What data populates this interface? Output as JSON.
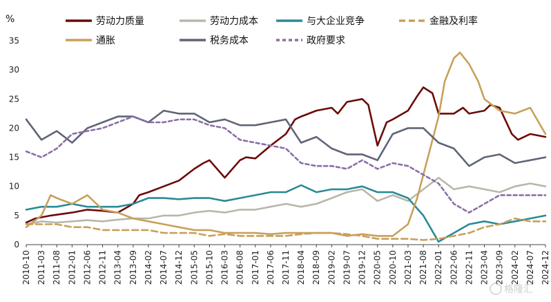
{
  "chart_data": {
    "type": "line",
    "unit": "%",
    "ylim": [
      0,
      35
    ],
    "yticks": [
      0,
      5,
      10,
      15,
      20,
      25,
      30,
      35
    ],
    "x_start": "2010-10",
    "x_end": "2024-12",
    "xticks": [
      "2010-10",
      "2011-03",
      "2011-08",
      "2012-01",
      "2012-06",
      "2012-11",
      "2013-04",
      "2013-09",
      "2014-02",
      "2014-07",
      "2014-12",
      "2015-05",
      "2015-10",
      "2016-03",
      "2016-08",
      "2017-01",
      "2017-06",
      "2017-11",
      "2018-04",
      "2018-09",
      "2019-02",
      "2019-07",
      "2019-12",
      "2020-05",
      "2020-10",
      "2021-03",
      "2021-08",
      "2022-01",
      "2022-06",
      "2022-11",
      "2023-04",
      "2023-09",
      "2024-02",
      "2024-07",
      "2024-12"
    ],
    "legend_position": "top",
    "grid": false,
    "series": [
      {
        "name": "劳动力质量",
        "color": "#6b0a0a",
        "dash": "solid",
        "points": [
          [
            "2010-10",
            3.8
          ],
          [
            "2011-01",
            4.5
          ],
          [
            "2011-06",
            5.0
          ],
          [
            "2012-01",
            5.5
          ],
          [
            "2012-06",
            6.0
          ],
          [
            "2012-11",
            5.8
          ],
          [
            "2013-04",
            5.5
          ],
          [
            "2013-09",
            7.0
          ],
          [
            "2013-11",
            8.5
          ],
          [
            "2014-02",
            9.0
          ],
          [
            "2014-07",
            10.0
          ],
          [
            "2014-12",
            11.0
          ],
          [
            "2015-05",
            13.0
          ],
          [
            "2015-08",
            14.0
          ],
          [
            "2015-10",
            14.5
          ],
          [
            "2016-03",
            11.5
          ],
          [
            "2016-08",
            14.5
          ],
          [
            "2016-10",
            15.0
          ],
          [
            "2017-01",
            14.8
          ],
          [
            "2017-06",
            17.0
          ],
          [
            "2017-11",
            19.0
          ],
          [
            "2018-02",
            21.5
          ],
          [
            "2018-04",
            22.0
          ],
          [
            "2018-09",
            23.0
          ],
          [
            "2019-02",
            23.5
          ],
          [
            "2019-04",
            22.5
          ],
          [
            "2019-07",
            24.5
          ],
          [
            "2019-12",
            25.0
          ],
          [
            "2020-02",
            24.0
          ],
          [
            "2020-05",
            17.0
          ],
          [
            "2020-08",
            21.0
          ],
          [
            "2020-10",
            21.5
          ],
          [
            "2021-03",
            23.0
          ],
          [
            "2021-06",
            25.5
          ],
          [
            "2021-08",
            27.0
          ],
          [
            "2021-11",
            26.0
          ],
          [
            "2022-01",
            22.5
          ],
          [
            "2022-06",
            22.5
          ],
          [
            "2022-09",
            23.5
          ],
          [
            "2022-11",
            22.5
          ],
          [
            "2023-04",
            23.0
          ],
          [
            "2023-06",
            24.0
          ],
          [
            "2023-09",
            23.5
          ],
          [
            "2024-01",
            19.0
          ],
          [
            "2024-03",
            18.0
          ],
          [
            "2024-07",
            19.0
          ],
          [
            "2024-12",
            18.5
          ]
        ]
      },
      {
        "name": "劳动力成本",
        "color": "#b9b6aa",
        "dash": "solid",
        "points": [
          [
            "2010-10",
            3.5
          ],
          [
            "2011-03",
            4.0
          ],
          [
            "2011-08",
            3.8
          ],
          [
            "2012-01",
            4.0
          ],
          [
            "2012-06",
            4.2
          ],
          [
            "2012-11",
            4.0
          ],
          [
            "2013-04",
            4.3
          ],
          [
            "2013-09",
            4.5
          ],
          [
            "2014-02",
            4.5
          ],
          [
            "2014-07",
            5.0
          ],
          [
            "2014-12",
            5.0
          ],
          [
            "2015-05",
            5.5
          ],
          [
            "2015-10",
            5.8
          ],
          [
            "2016-03",
            5.5
          ],
          [
            "2016-08",
            6.0
          ],
          [
            "2017-01",
            6.0
          ],
          [
            "2017-06",
            6.5
          ],
          [
            "2017-11",
            7.0
          ],
          [
            "2018-04",
            6.5
          ],
          [
            "2018-09",
            7.0
          ],
          [
            "2019-02",
            8.0
          ],
          [
            "2019-07",
            9.0
          ],
          [
            "2019-12",
            9.5
          ],
          [
            "2020-05",
            7.5
          ],
          [
            "2020-10",
            8.5
          ],
          [
            "2021-03",
            7.5
          ],
          [
            "2021-08",
            9.5
          ],
          [
            "2022-01",
            11.5
          ],
          [
            "2022-06",
            9.5
          ],
          [
            "2022-11",
            10.0
          ],
          [
            "2023-04",
            9.5
          ],
          [
            "2023-09",
            9.0
          ],
          [
            "2024-02",
            10.0
          ],
          [
            "2024-07",
            10.5
          ],
          [
            "2024-12",
            10.0
          ]
        ]
      },
      {
        "name": "与大企业竞争",
        "color": "#2a8a96",
        "dash": "solid",
        "points": [
          [
            "2010-10",
            6.0
          ],
          [
            "2011-03",
            6.5
          ],
          [
            "2011-08",
            6.5
          ],
          [
            "2012-01",
            7.0
          ],
          [
            "2012-06",
            6.5
          ],
          [
            "2012-11",
            6.5
          ],
          [
            "2013-04",
            6.5
          ],
          [
            "2013-09",
            7.0
          ],
          [
            "2014-02",
            8.0
          ],
          [
            "2014-07",
            8.0
          ],
          [
            "2014-12",
            7.8
          ],
          [
            "2015-05",
            8.0
          ],
          [
            "2015-10",
            8.0
          ],
          [
            "2016-03",
            7.5
          ],
          [
            "2016-08",
            8.0
          ],
          [
            "2017-01",
            8.5
          ],
          [
            "2017-06",
            9.0
          ],
          [
            "2017-11",
            9.0
          ],
          [
            "2018-04",
            10.2
          ],
          [
            "2018-09",
            9.0
          ],
          [
            "2019-02",
            9.5
          ],
          [
            "2019-07",
            9.5
          ],
          [
            "2019-12",
            10.0
          ],
          [
            "2020-05",
            9.0
          ],
          [
            "2020-10",
            9.0
          ],
          [
            "2021-03",
            8.0
          ],
          [
            "2021-08",
            5.0
          ],
          [
            "2022-01",
            0.5
          ],
          [
            "2022-06",
            2.0
          ],
          [
            "2022-11",
            3.5
          ],
          [
            "2023-04",
            4.0
          ],
          [
            "2023-09",
            3.5
          ],
          [
            "2024-02",
            4.0
          ],
          [
            "2024-07",
            4.5
          ],
          [
            "2024-12",
            5.0
          ]
        ]
      },
      {
        "name": "金融及利率",
        "color": "#c8a05a",
        "dash": "long",
        "points": [
          [
            "2010-10",
            3.5
          ],
          [
            "2011-03",
            3.5
          ],
          [
            "2011-08",
            3.5
          ],
          [
            "2012-01",
            3.0
          ],
          [
            "2012-06",
            3.0
          ],
          [
            "2012-11",
            2.5
          ],
          [
            "2013-04",
            2.5
          ],
          [
            "2013-09",
            2.5
          ],
          [
            "2014-02",
            2.5
          ],
          [
            "2014-07",
            2.0
          ],
          [
            "2014-12",
            2.0
          ],
          [
            "2015-05",
            2.0
          ],
          [
            "2015-10",
            1.5
          ],
          [
            "2016-03",
            1.8
          ],
          [
            "2016-08",
            1.5
          ],
          [
            "2017-01",
            1.5
          ],
          [
            "2017-06",
            1.5
          ],
          [
            "2017-11",
            1.5
          ],
          [
            "2018-04",
            1.8
          ],
          [
            "2018-09",
            2.0
          ],
          [
            "2019-02",
            2.0
          ],
          [
            "2019-07",
            1.8
          ],
          [
            "2019-12",
            1.5
          ],
          [
            "2020-05",
            1.0
          ],
          [
            "2020-10",
            1.0
          ],
          [
            "2021-03",
            1.0
          ],
          [
            "2021-08",
            0.8
          ],
          [
            "2022-01",
            1.0
          ],
          [
            "2022-06",
            1.5
          ],
          [
            "2022-11",
            2.0
          ],
          [
            "2023-04",
            3.0
          ],
          [
            "2023-09",
            3.5
          ],
          [
            "2024-02",
            4.5
          ],
          [
            "2024-07",
            4.0
          ],
          [
            "2024-12",
            4.0
          ]
        ]
      },
      {
        "name": "通胀",
        "color": "#c8a05a",
        "dash": "solid",
        "points": [
          [
            "2010-10",
            3.0
          ],
          [
            "2011-03",
            5.0
          ],
          [
            "2011-06",
            8.5
          ],
          [
            "2011-08",
            8.0
          ],
          [
            "2012-01",
            7.0
          ],
          [
            "2012-06",
            8.5
          ],
          [
            "2012-11",
            6.0
          ],
          [
            "2013-04",
            5.5
          ],
          [
            "2013-09",
            4.5
          ],
          [
            "2014-02",
            4.0
          ],
          [
            "2014-07",
            3.5
          ],
          [
            "2014-12",
            3.0
          ],
          [
            "2015-05",
            2.5
          ],
          [
            "2015-10",
            2.5
          ],
          [
            "2016-03",
            2.0
          ],
          [
            "2016-08",
            2.0
          ],
          [
            "2017-01",
            2.0
          ],
          [
            "2017-06",
            1.8
          ],
          [
            "2017-11",
            2.0
          ],
          [
            "2018-04",
            2.0
          ],
          [
            "2018-09",
            2.0
          ],
          [
            "2019-02",
            2.0
          ],
          [
            "2019-07",
            1.5
          ],
          [
            "2019-12",
            1.8
          ],
          [
            "2020-05",
            1.5
          ],
          [
            "2020-10",
            1.5
          ],
          [
            "2021-03",
            3.5
          ],
          [
            "2021-06",
            8.0
          ],
          [
            "2021-08",
            12.0
          ],
          [
            "2022-01",
            22.0
          ],
          [
            "2022-03",
            28.0
          ],
          [
            "2022-06",
            32.0
          ],
          [
            "2022-08",
            33.0
          ],
          [
            "2022-11",
            31.0
          ],
          [
            "2023-02",
            28.0
          ],
          [
            "2023-04",
            25.0
          ],
          [
            "2023-09",
            23.0
          ],
          [
            "2024-02",
            22.5
          ],
          [
            "2024-07",
            23.5
          ],
          [
            "2024-12",
            19.0
          ]
        ]
      },
      {
        "name": "税务成本",
        "color": "#5f6477",
        "dash": "solid",
        "points": [
          [
            "2010-10",
            21.5
          ],
          [
            "2011-03",
            18.0
          ],
          [
            "2011-08",
            19.5
          ],
          [
            "2012-01",
            17.5
          ],
          [
            "2012-06",
            20.0
          ],
          [
            "2012-11",
            21.0
          ],
          [
            "2013-04",
            22.0
          ],
          [
            "2013-09",
            22.0
          ],
          [
            "2014-02",
            21.0
          ],
          [
            "2014-07",
            23.0
          ],
          [
            "2014-12",
            22.5
          ],
          [
            "2015-05",
            22.5
          ],
          [
            "2015-10",
            21.0
          ],
          [
            "2016-03",
            21.5
          ],
          [
            "2016-08",
            20.5
          ],
          [
            "2017-01",
            20.5
          ],
          [
            "2017-06",
            21.0
          ],
          [
            "2017-11",
            21.5
          ],
          [
            "2018-04",
            17.5
          ],
          [
            "2018-09",
            18.5
          ],
          [
            "2019-02",
            16.5
          ],
          [
            "2019-07",
            15.5
          ],
          [
            "2019-12",
            15.5
          ],
          [
            "2020-05",
            14.5
          ],
          [
            "2020-10",
            19.0
          ],
          [
            "2021-03",
            20.0
          ],
          [
            "2021-08",
            20.0
          ],
          [
            "2022-01",
            17.5
          ],
          [
            "2022-06",
            16.5
          ],
          [
            "2022-11",
            13.5
          ],
          [
            "2023-04",
            15.0
          ],
          [
            "2023-09",
            15.5
          ],
          [
            "2024-02",
            14.0
          ],
          [
            "2024-07",
            14.5
          ],
          [
            "2024-12",
            15.0
          ]
        ]
      },
      {
        "name": "政府要求",
        "color": "#8a6ea8",
        "dash": "short",
        "points": [
          [
            "2010-10",
            16.0
          ],
          [
            "2011-03",
            15.0
          ],
          [
            "2011-08",
            16.5
          ],
          [
            "2012-01",
            19.0
          ],
          [
            "2012-06",
            19.5
          ],
          [
            "2012-11",
            20.0
          ],
          [
            "2013-04",
            21.0
          ],
          [
            "2013-09",
            22.0
          ],
          [
            "2014-02",
            21.0
          ],
          [
            "2014-07",
            21.0
          ],
          [
            "2014-12",
            21.5
          ],
          [
            "2015-05",
            21.5
          ],
          [
            "2015-10",
            20.5
          ],
          [
            "2016-03",
            20.0
          ],
          [
            "2016-08",
            18.0
          ],
          [
            "2017-01",
            17.5
          ],
          [
            "2017-06",
            17.0
          ],
          [
            "2017-11",
            16.5
          ],
          [
            "2018-04",
            14.0
          ],
          [
            "2018-09",
            13.5
          ],
          [
            "2019-02",
            13.5
          ],
          [
            "2019-07",
            13.0
          ],
          [
            "2019-12",
            14.5
          ],
          [
            "2020-05",
            13.0
          ],
          [
            "2020-10",
            14.0
          ],
          [
            "2021-03",
            13.5
          ],
          [
            "2021-08",
            12.0
          ],
          [
            "2022-01",
            10.5
          ],
          [
            "2022-06",
            7.0
          ],
          [
            "2022-11",
            5.5
          ],
          [
            "2023-04",
            7.0
          ],
          [
            "2023-09",
            8.5
          ],
          [
            "2024-02",
            8.5
          ],
          [
            "2024-07",
            8.5
          ],
          [
            "2024-12",
            8.5
          ]
        ]
      }
    ],
    "legend_order": [
      [
        "劳动力质量",
        "劳动力成本",
        "与大企业竞争",
        "金融及利率"
      ],
      [
        "通胀",
        "税务成本",
        "政府要求"
      ]
    ]
  },
  "watermark": "格隆汇"
}
